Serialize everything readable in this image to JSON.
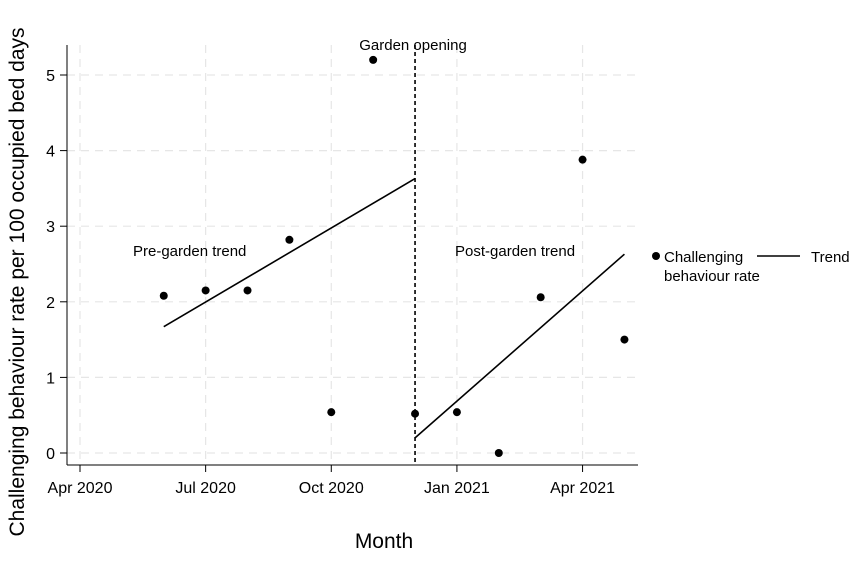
{
  "chart_data": {
    "type": "scatter",
    "xlabel": "Month",
    "ylabel": "Challenging behaviour rate per 100 occupied bed days",
    "x_ticks": [
      "Apr 2020",
      "Jul 2020",
      "Oct 2020",
      "Jan 2021",
      "Apr 2021"
    ],
    "x_tick_values": [
      "2020-04",
      "2020-07",
      "2020-10",
      "2021-01",
      "2021-04"
    ],
    "xlim": [
      "2020-03",
      "2021-05"
    ],
    "y_ticks": [
      "0",
      "1",
      "2",
      "3",
      "4",
      "5"
    ],
    "ylim": [
      0,
      5.3
    ],
    "grid": true,
    "series": [
      {
        "name": "Challenging behaviour rate",
        "type": "scatter",
        "color": "#000000",
        "points": [
          {
            "x": "2020-06",
            "y": 2.08
          },
          {
            "x": "2020-07",
            "y": 2.15
          },
          {
            "x": "2020-08",
            "y": 2.15
          },
          {
            "x": "2020-09",
            "y": 2.82
          },
          {
            "x": "2020-10",
            "y": 0.54
          },
          {
            "x": "2020-11",
            "y": 5.2
          },
          {
            "x": "2020-12",
            "y": 0.52
          },
          {
            "x": "2021-01",
            "y": 0.54
          },
          {
            "x": "2021-02",
            "y": 0.0
          },
          {
            "x": "2021-03",
            "y": 2.06
          },
          {
            "x": "2021-04",
            "y": 3.88
          },
          {
            "x": "2021-05",
            "y": 1.5
          }
        ]
      },
      {
        "name": "Trend",
        "type": "line",
        "color": "#000000",
        "segments": [
          {
            "label": "Pre-garden trend",
            "x": [
              "2020-06",
              "2020-12"
            ],
            "y": [
              1.67,
              3.63
            ]
          },
          {
            "label": "Post-garden trend",
            "x": [
              "2020-12",
              "2021-05"
            ],
            "y": [
              0.2,
              2.63
            ]
          }
        ]
      }
    ],
    "annotations": [
      {
        "type": "vline",
        "x": "2020-12",
        "text": "Garden opening",
        "style": "dashed"
      },
      {
        "type": "text",
        "text": "Pre-garden trend"
      },
      {
        "type": "text",
        "text": "Post-garden trend"
      }
    ],
    "legend": {
      "placement": "right",
      "entries": [
        {
          "label": "Challenging behaviour rate",
          "marker": "dot"
        },
        {
          "label": "Trend",
          "marker": "line"
        }
      ]
    }
  }
}
